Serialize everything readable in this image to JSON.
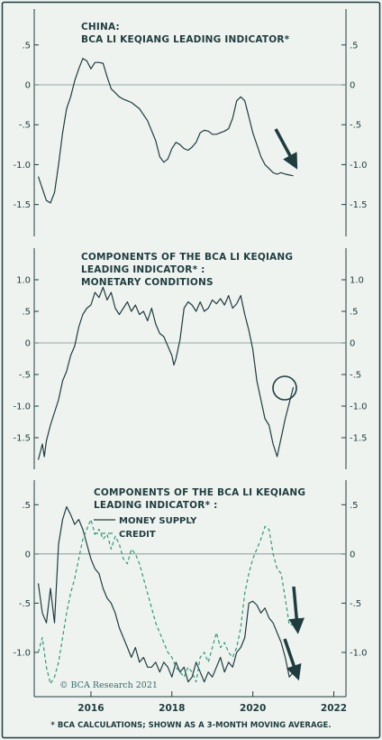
{
  "footnote": "* BCA CALCULATIONS; SHOWN AS A 3-MONTH MOVING AVERAGE.",
  "copyright": "© BCA Research 2021",
  "colors": {
    "line": "#1f3d3e",
    "credit": "#2f9a78",
    "zero": "#7a8f8e",
    "background": "#eef3f0",
    "arrow": "#1f3d3e"
  },
  "x_axis": {
    "range": [
      2014.6,
      2022.3
    ],
    "ticks": [
      2016,
      2018,
      2020,
      2022
    ],
    "tick_labels": [
      "2016",
      "2018",
      "2020",
      "2022"
    ]
  },
  "chart_data": [
    {
      "type": "line",
      "title": "CHINA:",
      "subtitle": "BCA LI KEQIANG LEADING INDICATOR*",
      "ylim": [
        -1.9,
        0.95
      ],
      "yticks": [
        -1.5,
        -1.0,
        -0.5,
        0,
        0.5
      ],
      "ytick_labels": [
        "-1.5",
        "-1.0",
        "-.5",
        "0",
        ".5"
      ],
      "annotation": "downward arrow",
      "series": [
        {
          "style": "solid",
          "x": [
            2014.7,
            2014.8,
            2014.9,
            2015.0,
            2015.1,
            2015.2,
            2015.3,
            2015.4,
            2015.5,
            2015.6,
            2015.7,
            2015.8,
            2015.9,
            2016.0,
            2016.1,
            2016.2,
            2016.3,
            2016.4,
            2016.5,
            2016.6,
            2016.7,
            2016.8,
            2016.9,
            2017.0,
            2017.2,
            2017.4,
            2017.6,
            2017.7,
            2017.8,
            2017.9,
            2018.0,
            2018.1,
            2018.2,
            2018.3,
            2018.4,
            2018.5,
            2018.6,
            2018.7,
            2018.8,
            2018.9,
            2019.0,
            2019.1,
            2019.2,
            2019.3,
            2019.4,
            2019.5,
            2019.6,
            2019.7,
            2019.8,
            2019.9,
            2020.0,
            2020.1,
            2020.2,
            2020.3,
            2020.4,
            2020.5,
            2020.6,
            2020.7,
            2020.8,
            2020.9,
            2021.0
          ],
          "y": [
            -1.15,
            -1.3,
            -1.45,
            -1.48,
            -1.35,
            -1.0,
            -0.6,
            -0.3,
            -0.15,
            0.05,
            0.2,
            0.33,
            0.3,
            0.2,
            0.28,
            0.28,
            0.27,
            0.1,
            -0.05,
            -0.1,
            -0.15,
            -0.18,
            -0.2,
            -0.22,
            -0.3,
            -0.45,
            -0.7,
            -0.9,
            -0.97,
            -0.93,
            -0.8,
            -0.72,
            -0.75,
            -0.8,
            -0.82,
            -0.78,
            -0.72,
            -0.6,
            -0.57,
            -0.58,
            -0.62,
            -0.62,
            -0.6,
            -0.58,
            -0.55,
            -0.42,
            -0.2,
            -0.15,
            -0.2,
            -0.4,
            -0.6,
            -0.75,
            -0.9,
            -1.0,
            -1.05,
            -1.1,
            -1.12,
            -1.1,
            -1.12,
            -1.13,
            -1.14
          ]
        }
      ]
    },
    {
      "type": "line",
      "title": "COMPONENTS OF THE BCA LI KEQIANG",
      "subtitle": "LEADING INDICATOR* :",
      "subtitle2": "MONETARY CONDITIONS",
      "ylim": [
        -2.0,
        1.5
      ],
      "yticks": [
        -1.5,
        -1.0,
        -0.5,
        0,
        0.5,
        1.0
      ],
      "ytick_labels": [
        "-1.5",
        "-1.0",
        "-.5",
        "0",
        ".5",
        "1.0"
      ],
      "annotation": "circle",
      "series": [
        {
          "style": "solid",
          "x": [
            2014.7,
            2014.8,
            2014.85,
            2014.9,
            2015.0,
            2015.1,
            2015.2,
            2015.3,
            2015.4,
            2015.5,
            2015.6,
            2015.7,
            2015.8,
            2015.9,
            2016.0,
            2016.1,
            2016.2,
            2016.3,
            2016.4,
            2016.5,
            2016.6,
            2016.7,
            2016.8,
            2016.9,
            2017.0,
            2017.1,
            2017.2,
            2017.3,
            2017.4,
            2017.5,
            2017.6,
            2017.7,
            2017.8,
            2017.9,
            2018.0,
            2018.05,
            2018.1,
            2018.2,
            2018.3,
            2018.4,
            2018.5,
            2018.6,
            2018.7,
            2018.8,
            2018.9,
            2019.0,
            2019.1,
            2019.2,
            2019.3,
            2019.4,
            2019.5,
            2019.6,
            2019.7,
            2019.8,
            2019.9,
            2020.0,
            2020.1,
            2020.2,
            2020.3,
            2020.4,
            2020.5,
            2020.6,
            2020.7,
            2020.8,
            2020.9,
            2021.0
          ],
          "y": [
            -1.85,
            -1.6,
            -1.8,
            -1.55,
            -1.3,
            -1.1,
            -0.9,
            -0.6,
            -0.45,
            -0.2,
            -0.05,
            0.25,
            0.45,
            0.55,
            0.6,
            0.8,
            0.72,
            0.88,
            0.68,
            0.8,
            0.55,
            0.45,
            0.55,
            0.65,
            0.5,
            0.6,
            0.45,
            0.5,
            0.35,
            0.55,
            0.3,
            0.15,
            0.1,
            -0.05,
            -0.2,
            -0.35,
            -0.25,
            0.05,
            0.55,
            0.65,
            0.6,
            0.5,
            0.65,
            0.5,
            0.55,
            0.68,
            0.62,
            0.7,
            0.6,
            0.75,
            0.55,
            0.62,
            0.75,
            0.45,
            0.2,
            -0.1,
            -0.6,
            -0.9,
            -1.2,
            -1.3,
            -1.6,
            -1.8,
            -1.5,
            -1.2,
            -0.95,
            -0.7
          ]
        }
      ]
    },
    {
      "type": "line",
      "title": "COMPONENTS OF THE BCA LI KEQIANG",
      "subtitle": "LEADING INDICATOR* :",
      "ylim": [
        -1.45,
        0.75
      ],
      "yticks": [
        -1.0,
        -0.5,
        0,
        0.5
      ],
      "ytick_labels": [
        "-1.0",
        "-.5",
        "0",
        ".5"
      ],
      "annotation": "two downward arrows",
      "legend": [
        "MONEY SUPPLY",
        "CREDIT"
      ],
      "series": [
        {
          "name": "MONEY SUPPLY",
          "style": "solid",
          "x": [
            2014.7,
            2014.8,
            2014.9,
            2015.0,
            2015.1,
            2015.2,
            2015.3,
            2015.4,
            2015.5,
            2015.6,
            2015.7,
            2015.8,
            2015.9,
            2016.0,
            2016.1,
            2016.2,
            2016.3,
            2016.4,
            2016.5,
            2016.6,
            2016.7,
            2016.8,
            2016.9,
            2017.0,
            2017.1,
            2017.2,
            2017.3,
            2017.4,
            2017.5,
            2017.6,
            2017.7,
            2017.8,
            2017.9,
            2018.0,
            2018.1,
            2018.2,
            2018.3,
            2018.4,
            2018.5,
            2018.6,
            2018.7,
            2018.8,
            2018.9,
            2019.0,
            2019.1,
            2019.2,
            2019.3,
            2019.4,
            2019.5,
            2019.6,
            2019.7,
            2019.8,
            2019.9,
            2020.0,
            2020.1,
            2020.2,
            2020.3,
            2020.4,
            2020.5,
            2020.6,
            2020.7,
            2020.8,
            2020.9,
            2021.0
          ],
          "y": [
            -0.3,
            -0.6,
            -0.7,
            -0.35,
            -0.7,
            0.1,
            0.35,
            0.48,
            0.4,
            0.3,
            0.35,
            0.25,
            0.1,
            -0.05,
            -0.15,
            -0.2,
            -0.35,
            -0.45,
            -0.5,
            -0.6,
            -0.75,
            -0.85,
            -0.95,
            -1.05,
            -0.95,
            -1.1,
            -1.05,
            -1.15,
            -1.15,
            -1.1,
            -1.2,
            -1.1,
            -1.15,
            -1.25,
            -1.1,
            -1.2,
            -1.15,
            -1.3,
            -1.25,
            -1.1,
            -1.2,
            -1.3,
            -1.2,
            -1.25,
            -1.15,
            -1.05,
            -1.2,
            -1.1,
            -1.15,
            -1.0,
            -0.95,
            -0.85,
            -0.5,
            -0.48,
            -0.52,
            -0.6,
            -0.55,
            -0.65,
            -0.7,
            -0.8,
            -0.9,
            -1.05,
            -1.25,
            -1.2
          ]
        },
        {
          "name": "CREDIT",
          "style": "dashed",
          "x": [
            2014.7,
            2014.8,
            2014.9,
            2015.0,
            2015.1,
            2015.2,
            2015.3,
            2015.4,
            2015.5,
            2015.6,
            2015.7,
            2015.8,
            2015.9,
            2016.0,
            2016.1,
            2016.2,
            2016.3,
            2016.4,
            2016.5,
            2016.6,
            2016.7,
            2016.8,
            2016.9,
            2017.0,
            2017.1,
            2017.2,
            2017.3,
            2017.4,
            2017.5,
            2017.6,
            2017.7,
            2017.8,
            2017.9,
            2018.0,
            2018.1,
            2018.2,
            2018.3,
            2018.4,
            2018.5,
            2018.6,
            2018.7,
            2018.8,
            2018.9,
            2019.0,
            2019.1,
            2019.2,
            2019.3,
            2019.4,
            2019.5,
            2019.6,
            2019.7,
            2019.8,
            2019.9,
            2020.0,
            2020.1,
            2020.2,
            2020.3,
            2020.4,
            2020.5,
            2020.6,
            2020.7,
            2020.8,
            2020.9,
            2021.0
          ],
          "y": [
            -1.0,
            -0.85,
            -1.15,
            -1.32,
            -1.25,
            -1.1,
            -0.85,
            -0.6,
            -0.4,
            -0.25,
            -0.05,
            0.15,
            0.25,
            0.35,
            0.2,
            0.25,
            0.15,
            0.2,
            0.05,
            0.18,
            0.1,
            -0.05,
            -0.1,
            0.05,
            0.0,
            -0.1,
            -0.25,
            -0.4,
            -0.55,
            -0.7,
            -0.8,
            -0.9,
            -1.0,
            -1.05,
            -1.15,
            -1.2,
            -1.25,
            -1.15,
            -1.2,
            -1.3,
            -1.05,
            -1.0,
            -1.1,
            -0.95,
            -0.8,
            -0.95,
            -0.9,
            -1.0,
            -1.05,
            -0.95,
            -0.75,
            -0.4,
            -0.2,
            -0.05,
            0.05,
            0.15,
            0.28,
            0.25,
            0.0,
            -0.15,
            -0.2,
            -0.45,
            -0.72,
            -0.72
          ]
        }
      ]
    }
  ]
}
